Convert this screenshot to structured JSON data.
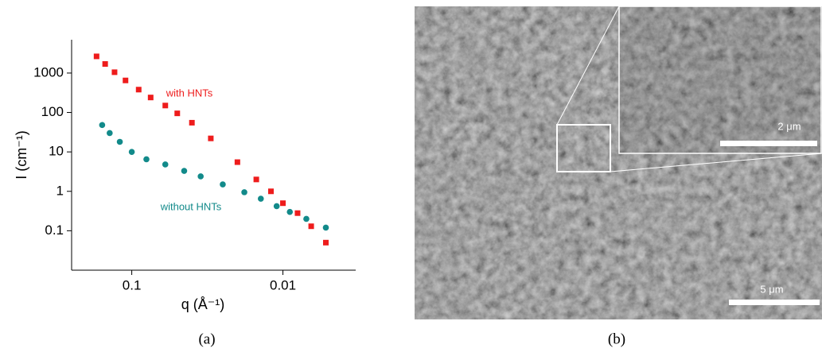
{
  "chart_data": {
    "type": "scatter",
    "xlabel": "q (Å⁻¹)",
    "ylabel": "I (cm⁻¹)",
    "log_x": true,
    "log_y": true,
    "xlim": [
      0.25,
      0.0033
    ],
    "ylim": [
      0.01,
      7000
    ],
    "xticks": [
      0.1,
      0.01
    ],
    "yticks": [
      0.1,
      1,
      10,
      100,
      1000
    ],
    "series": [
      {
        "name": "with HNTs",
        "color": "#ee1c1c",
        "marker": "square",
        "x": [
          0.171,
          0.15,
          0.13,
          0.11,
          0.09,
          0.075,
          0.06,
          0.05,
          0.04,
          0.03,
          0.02,
          0.015,
          0.012,
          0.01,
          0.008,
          0.0065,
          0.0052
        ],
        "values": [
          2650,
          1700,
          1050,
          650,
          380,
          240,
          150,
          95,
          55,
          22,
          5.5,
          2,
          1,
          0.5,
          0.28,
          0.13,
          0.05
        ]
      },
      {
        "name": "without HNTs",
        "color": "#128a8a",
        "marker": "circle",
        "x": [
          0.157,
          0.14,
          0.12,
          0.1,
          0.08,
          0.06,
          0.045,
          0.035,
          0.025,
          0.018,
          0.014,
          0.011,
          0.009,
          0.007,
          0.0052
        ],
        "values": [
          48,
          30,
          18,
          10,
          6.5,
          4.8,
          3.3,
          2.4,
          1.5,
          0.95,
          0.65,
          0.42,
          0.3,
          0.2,
          0.12
        ]
      }
    ]
  },
  "image_panel": {
    "inset_scale_bar": "2 μm",
    "main_scale_bar": "5 μm"
  },
  "captions": [
    "(a)",
    "(b)"
  ]
}
